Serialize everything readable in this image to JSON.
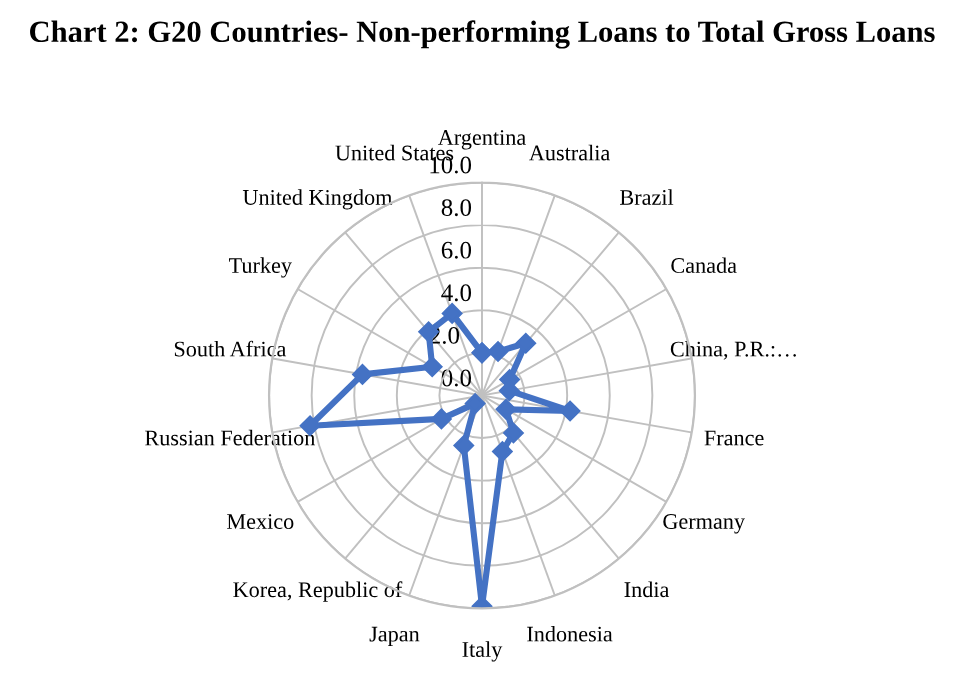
{
  "chart_data": {
    "type": "radar",
    "title": "Chart 2: G20 Countries- Non-performing Loans to Total Gross Loans",
    "categories": [
      "Argentina",
      "Australia",
      "Brazil",
      "Canada",
      "China, P.R.:…",
      "France",
      "Germany",
      "India",
      "Indonesia",
      "Italy",
      "Japan",
      "Korea, Republic of",
      "Mexico",
      "Russian Federation",
      "South Africa",
      "Turkey",
      "United Kingdom",
      "United States"
    ],
    "series": [
      {
        "color": "#4472c4",
        "values": [
          2.0,
          2.2,
          3.2,
          1.5,
          1.3,
          4.2,
          1.3,
          2.3,
          2.8,
          9.9,
          2.5,
          0.5,
          2.2,
          8.2,
          5.7,
          2.7,
          3.9,
          4.1
        ]
      }
    ],
    "ylim": [
      0,
      10
    ],
    "yticks": [
      {
        "value": 0,
        "label": "0.0"
      },
      {
        "value": 2,
        "label": "2.0"
      },
      {
        "value": 4,
        "label": "4.0"
      },
      {
        "value": 6,
        "label": "6.0"
      },
      {
        "value": 8,
        "label": "8.0"
      },
      {
        "value": 10,
        "label": "10.0"
      }
    ],
    "grid": true,
    "marker": "diamond",
    "line_style": "solid"
  }
}
